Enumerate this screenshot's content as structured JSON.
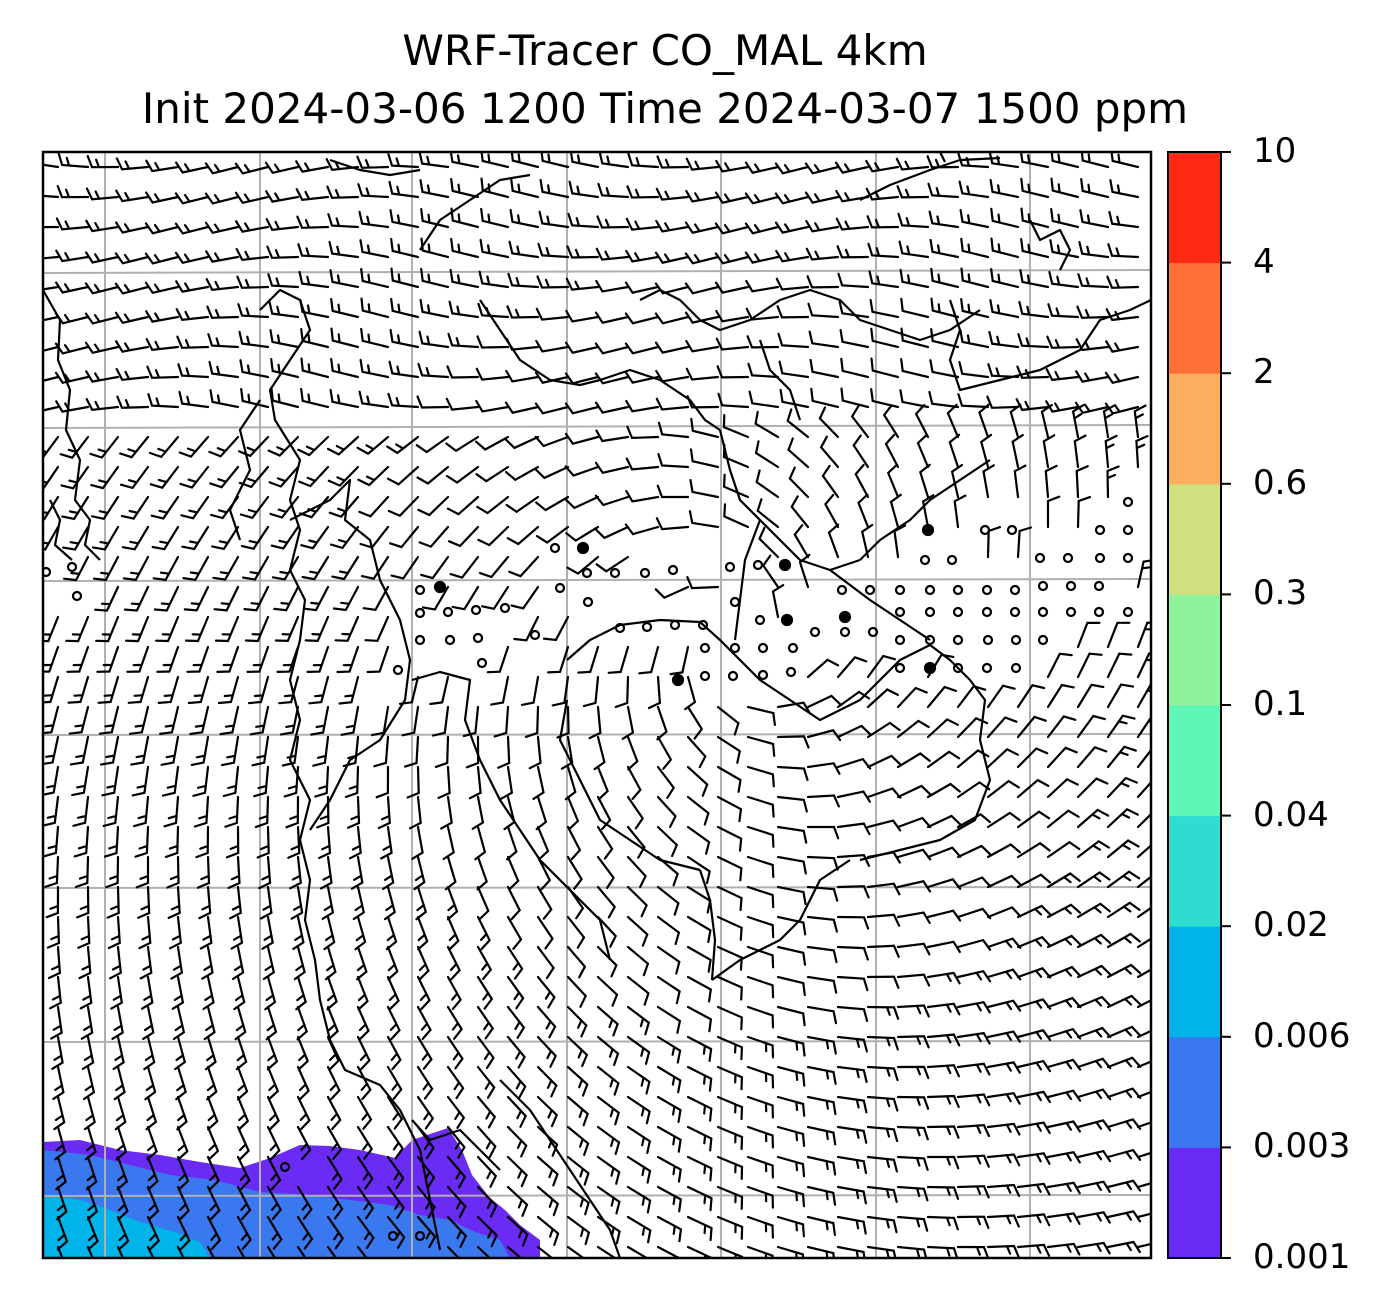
{
  "title": {
    "line1": "WRF-Tracer CO_MAL 4km",
    "line2": "Init 2024-03-06 1200 Time 2024-03-07 1500 ppm"
  },
  "colorbar": {
    "labels": [
      "0.001",
      "0.003",
      "0.006",
      "0.02",
      "0.04",
      "0.1",
      "0.3",
      "0.6",
      "2",
      "4",
      "10"
    ],
    "colors": [
      "#6a2cf5",
      "#3a78f0",
      "#00b4ea",
      "#2fdcd0",
      "#5ff7b8",
      "#8ff39c",
      "#cfe07e",
      "#fdad5e",
      "#ff7139",
      "#ff2a14"
    ]
  },
  "map": {
    "frame_color": "#000000",
    "gridline_color": "#b0b0b0",
    "coastline_color": "#000000",
    "barb_color": "#000000",
    "plume_region": "bottom-left"
  }
}
